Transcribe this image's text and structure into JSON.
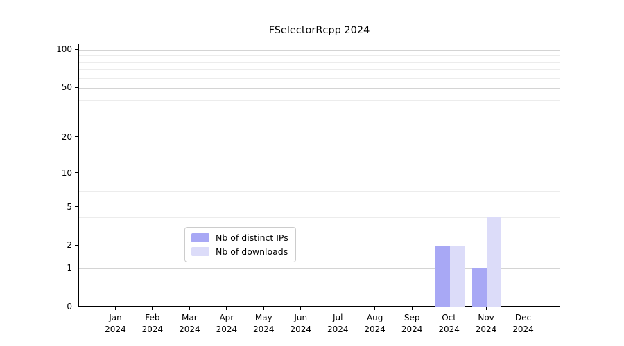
{
  "chart_data": {
    "type": "bar",
    "title": "FSelectorRcpp 2024",
    "scale": "log1p",
    "categories": [
      "Jan",
      "Feb",
      "Mar",
      "Apr",
      "May",
      "Jun",
      "Jul",
      "Aug",
      "Sep",
      "Oct",
      "Nov",
      "Dec"
    ],
    "year_label": "2024",
    "series": [
      {
        "name": "Nb of distinct IPs",
        "color": "#a8a8f5",
        "values": [
          0,
          0,
          0,
          0,
          0,
          0,
          0,
          0,
          0,
          2,
          1,
          0
        ]
      },
      {
        "name": "Nb of downloads",
        "color": "#dcdcf9",
        "values": [
          0,
          0,
          0,
          0,
          0,
          0,
          0,
          0,
          0,
          2,
          4,
          0
        ]
      }
    ],
    "ylim": [
      0,
      100
    ],
    "yticks": [
      0,
      1,
      2,
      5,
      10,
      20,
      50,
      100
    ],
    "y_minor_ticks": [
      3,
      4,
      6,
      7,
      8,
      9,
      30,
      40,
      60,
      70,
      80,
      90
    ],
    "xlabel": "",
    "ylabel": "",
    "grid": "on",
    "legend_position": "bottom-center-inside"
  },
  "colors": {
    "axis": "#000000",
    "grid_major": "#d4d4d4",
    "grid_minor": "#ececec",
    "background": "#ffffff",
    "bar_distinct_ips": "#a8a8f5",
    "bar_downloads": "#dcdcf9"
  }
}
